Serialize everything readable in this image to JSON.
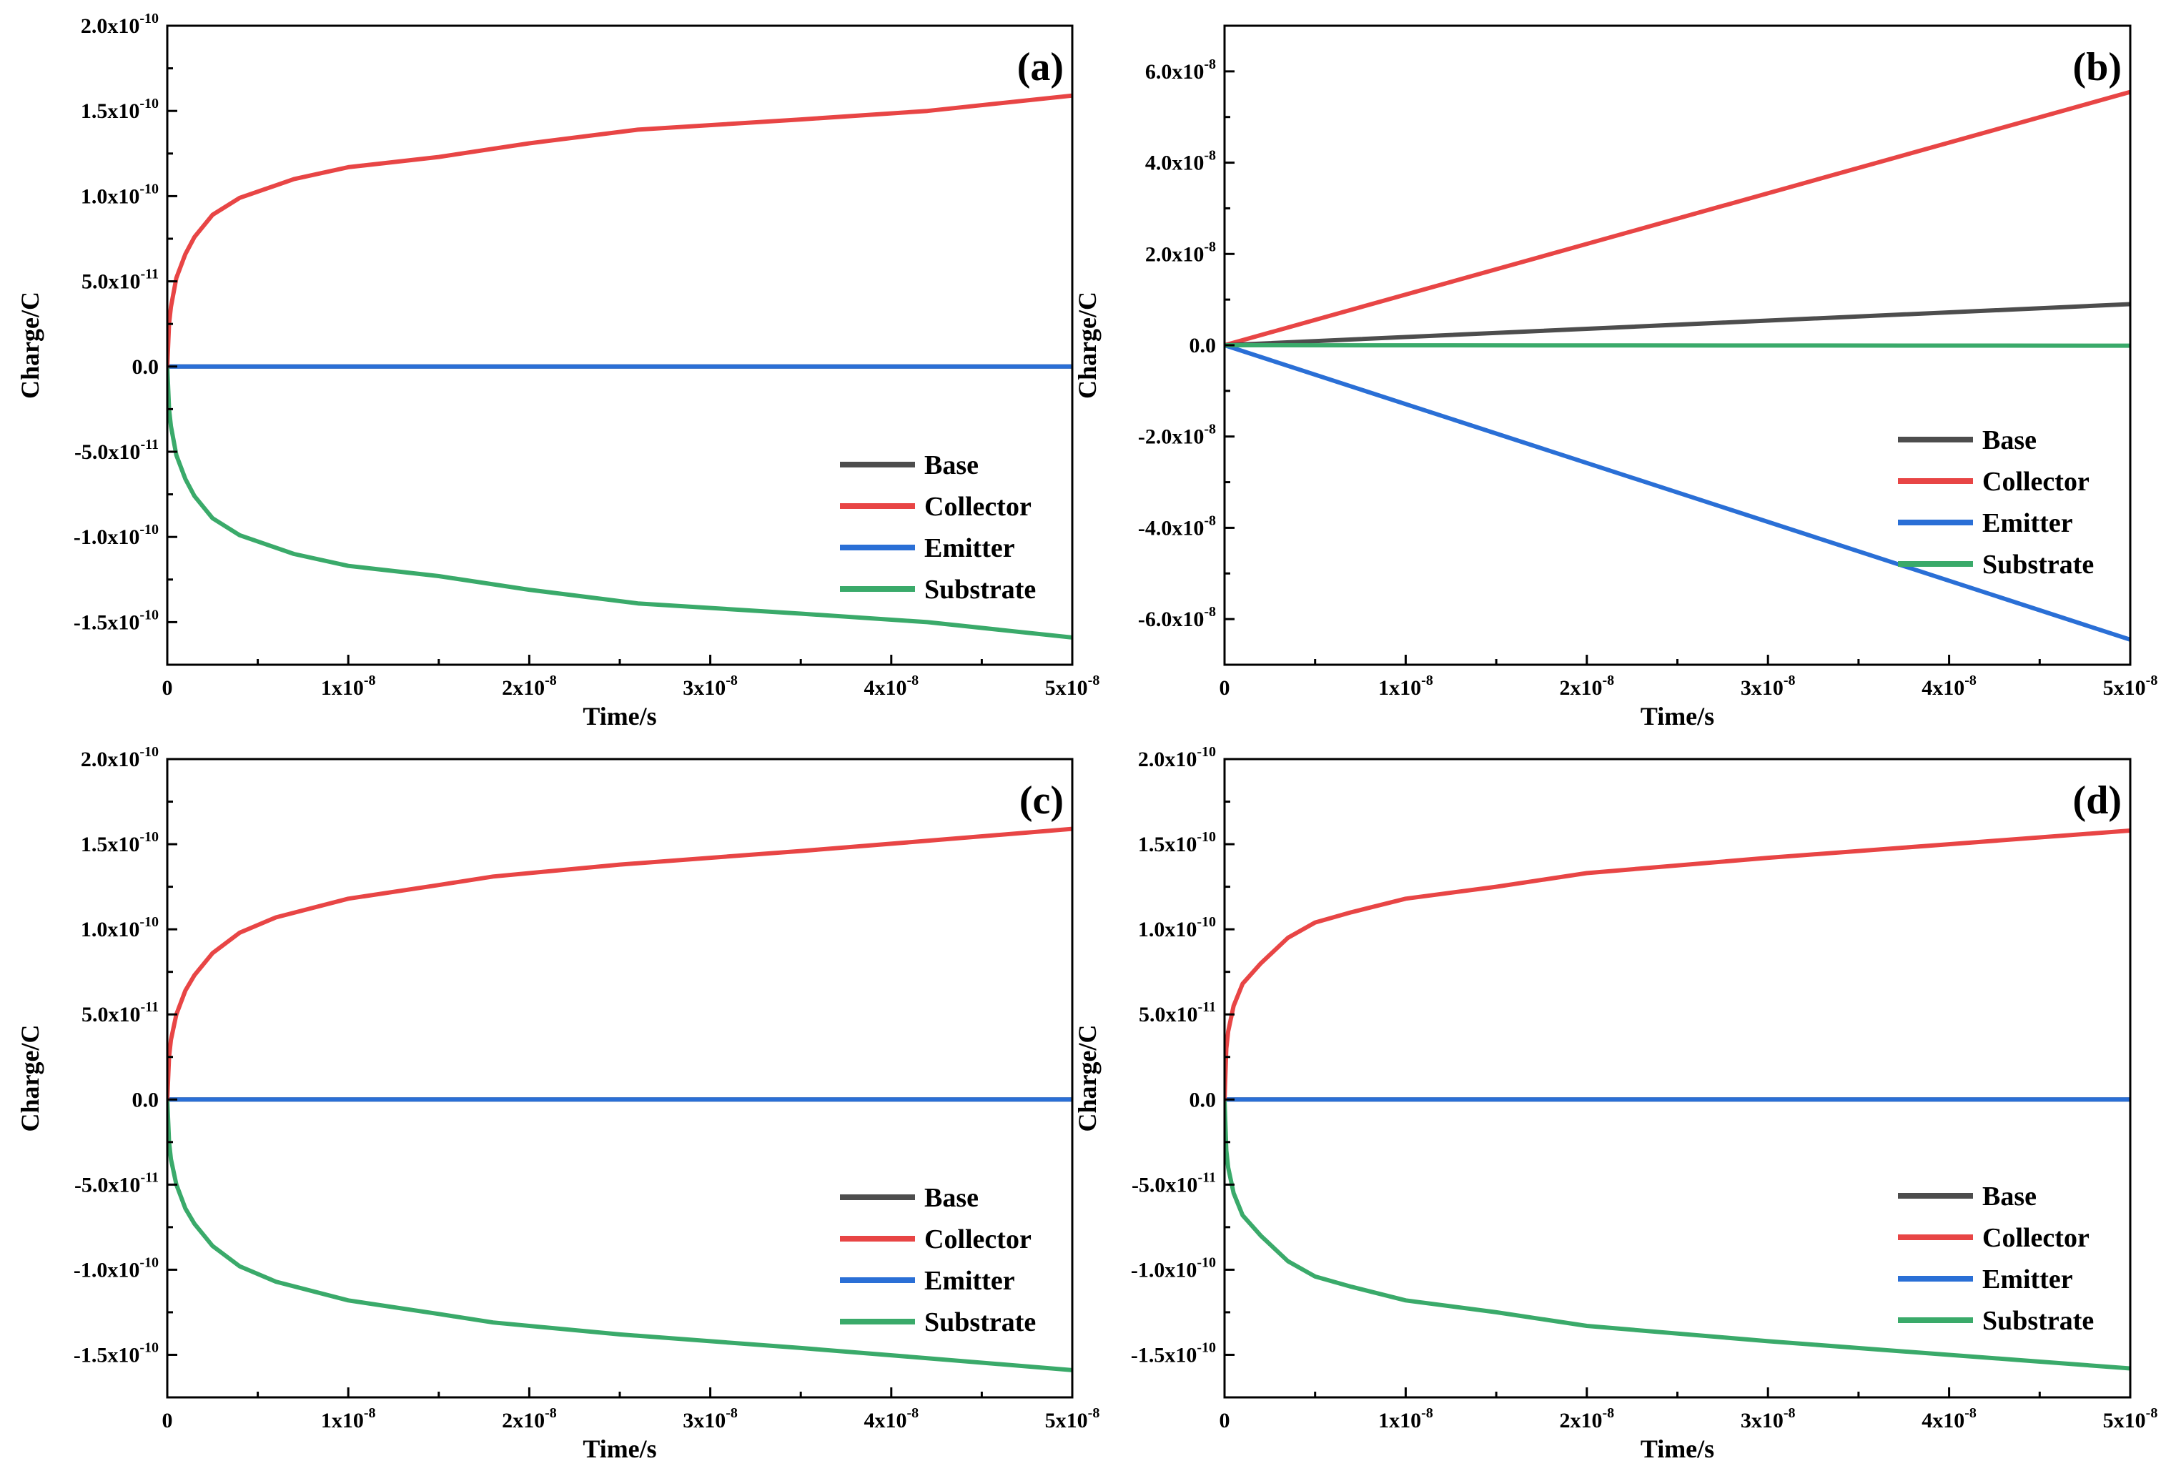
{
  "colors": {
    "Base": "#4d4d4d",
    "Collector": "#e84545",
    "Emitter": "#2a6fd6",
    "Substrate": "#3aaa6a",
    "axis": "#000000"
  },
  "chart_data": [
    {
      "type": "line",
      "panel_label": "(a)",
      "xlabel": "Time/s",
      "ylabel": "Charge/C",
      "xlim": [
        0,
        5e-08
      ],
      "ylim": [
        -1.75e-10,
        2e-10
      ],
      "xticks": [
        {
          "value": 0,
          "mant": "0",
          "exp": ""
        },
        {
          "value": 1e-08,
          "mant": "1x10",
          "exp": "-8"
        },
        {
          "value": 2e-08,
          "mant": "2x10",
          "exp": "-8"
        },
        {
          "value": 3e-08,
          "mant": "3x10",
          "exp": "-8"
        },
        {
          "value": 4e-08,
          "mant": "4x10",
          "exp": "-8"
        },
        {
          "value": 5e-08,
          "mant": "5x10",
          "exp": "-8"
        }
      ],
      "yticks": [
        {
          "value": 2e-10,
          "mant": "2.0x10",
          "exp": "-10"
        },
        {
          "value": 1.5e-10,
          "mant": "1.5x10",
          "exp": "-10"
        },
        {
          "value": 1e-10,
          "mant": "1.0x10",
          "exp": "-10"
        },
        {
          "value": 5e-11,
          "mant": "5.0x10",
          "exp": "-11"
        },
        {
          "value": 0,
          "mant": "0.0",
          "exp": ""
        },
        {
          "value": -5e-11,
          "mant": "-5.0x10",
          "exp": "-11"
        },
        {
          "value": -1e-10,
          "mant": "-1.0x10",
          "exp": "-10"
        },
        {
          "value": -1.5e-10,
          "mant": "-1.5x10",
          "exp": "-10"
        }
      ],
      "legend": [
        "Base",
        "Collector",
        "Emitter",
        "Substrate"
      ],
      "series": [
        {
          "name": "Base",
          "x": [
            0,
            5e-08
          ],
          "values": [
            0,
            0
          ]
        },
        {
          "name": "Emitter",
          "x": [
            0,
            5e-08
          ],
          "values": [
            0,
            0
          ]
        },
        {
          "name": "Substrate",
          "x": [
            0,
            1e-10,
            2e-10,
            5e-10,
            1e-09,
            1.5e-09,
            2.5e-09,
            4e-09,
            7e-09,
            1e-08,
            1.5e-08,
            2e-08,
            2.6e-08,
            3.5e-08,
            4.2e-08,
            5e-08
          ],
          "values": [
            0,
            -2.5e-11,
            -3.5e-11,
            -5.2e-11,
            -6.6e-11,
            -7.6e-11,
            -8.9e-11,
            -9.9e-11,
            -1.1e-10,
            -1.17e-10,
            -1.23e-10,
            -1.31e-10,
            -1.39e-10,
            -1.45e-10,
            -1.5e-10,
            -1.59e-10
          ]
        },
        {
          "name": "Collector",
          "x": [
            0,
            1e-10,
            2e-10,
            5e-10,
            1e-09,
            1.5e-09,
            2.5e-09,
            4e-09,
            7e-09,
            1e-08,
            1.5e-08,
            2e-08,
            2.6e-08,
            3.5e-08,
            4.2e-08,
            5e-08
          ],
          "values": [
            0,
            2.5e-11,
            3.5e-11,
            5.2e-11,
            6.6e-11,
            7.6e-11,
            8.9e-11,
            9.9e-11,
            1.1e-10,
            1.17e-10,
            1.23e-10,
            1.31e-10,
            1.39e-10,
            1.45e-10,
            1.5e-10,
            1.59e-10
          ]
        }
      ]
    },
    {
      "type": "line",
      "panel_label": "(b)",
      "xlabel": "Time/s",
      "ylabel": "Charge/C",
      "xlim": [
        0,
        5e-08
      ],
      "ylim": [
        -7e-08,
        7e-08
      ],
      "xticks": [
        {
          "value": 0,
          "mant": "0",
          "exp": ""
        },
        {
          "value": 1e-08,
          "mant": "1x10",
          "exp": "-8"
        },
        {
          "value": 2e-08,
          "mant": "2x10",
          "exp": "-8"
        },
        {
          "value": 3e-08,
          "mant": "3x10",
          "exp": "-8"
        },
        {
          "value": 4e-08,
          "mant": "4x10",
          "exp": "-8"
        },
        {
          "value": 5e-08,
          "mant": "5x10",
          "exp": "-8"
        }
      ],
      "yticks": [
        {
          "value": 6e-08,
          "mant": "6.0x10",
          "exp": "-8"
        },
        {
          "value": 4e-08,
          "mant": "4.0x10",
          "exp": "-8"
        },
        {
          "value": 2e-08,
          "mant": "2.0x10",
          "exp": "-8"
        },
        {
          "value": 0,
          "mant": "0.0",
          "exp": ""
        },
        {
          "value": -2e-08,
          "mant": "-2.0x10",
          "exp": "-8"
        },
        {
          "value": -4e-08,
          "mant": "-4.0x10",
          "exp": "-8"
        },
        {
          "value": -6e-08,
          "mant": "-6.0x10",
          "exp": "-8"
        }
      ],
      "legend": [
        "Base",
        "Collector",
        "Emitter",
        "Substrate"
      ],
      "series": [
        {
          "name": "Collector",
          "x": [
            0,
            5e-08
          ],
          "values": [
            0,
            5.55e-08
          ]
        },
        {
          "name": "Emitter",
          "x": [
            0,
            5e-08
          ],
          "values": [
            0,
            -6.45e-08
          ]
        },
        {
          "name": "Base",
          "x": [
            0,
            5e-08
          ],
          "values": [
            0,
            9e-09
          ]
        },
        {
          "name": "Substrate",
          "x": [
            0,
            5e-08
          ],
          "values": [
            0,
            -1e-10
          ]
        }
      ]
    },
    {
      "type": "line",
      "panel_label": "(c)",
      "xlabel": "Time/s",
      "ylabel": "Charge/C",
      "xlim": [
        0,
        5e-08
      ],
      "ylim": [
        -1.75e-10,
        2e-10
      ],
      "xticks": [
        {
          "value": 0,
          "mant": "0",
          "exp": ""
        },
        {
          "value": 1e-08,
          "mant": "1x10",
          "exp": "-8"
        },
        {
          "value": 2e-08,
          "mant": "2x10",
          "exp": "-8"
        },
        {
          "value": 3e-08,
          "mant": "3x10",
          "exp": "-8"
        },
        {
          "value": 4e-08,
          "mant": "4x10",
          "exp": "-8"
        },
        {
          "value": 5e-08,
          "mant": "5x10",
          "exp": "-8"
        }
      ],
      "yticks": [
        {
          "value": 2e-10,
          "mant": "2.0x10",
          "exp": "-10"
        },
        {
          "value": 1.5e-10,
          "mant": "1.5x10",
          "exp": "-10"
        },
        {
          "value": 1e-10,
          "mant": "1.0x10",
          "exp": "-10"
        },
        {
          "value": 5e-11,
          "mant": "5.0x10",
          "exp": "-11"
        },
        {
          "value": 0,
          "mant": "0.0",
          "exp": ""
        },
        {
          "value": -5e-11,
          "mant": "-5.0x10",
          "exp": "-11"
        },
        {
          "value": -1e-10,
          "mant": "-1.0x10",
          "exp": "-10"
        },
        {
          "value": -1.5e-10,
          "mant": "-1.5x10",
          "exp": "-10"
        }
      ],
      "legend": [
        "Base",
        "Collector",
        "Emitter",
        "Substrate"
      ],
      "series": [
        {
          "name": "Base",
          "x": [
            0,
            5e-08
          ],
          "values": [
            0,
            0
          ]
        },
        {
          "name": "Emitter",
          "x": [
            0,
            5e-08
          ],
          "values": [
            0,
            0
          ]
        },
        {
          "name": "Substrate",
          "x": [
            0,
            1e-10,
            2e-10,
            5e-10,
            1e-09,
            1.5e-09,
            2.5e-09,
            4e-09,
            6e-09,
            1e-08,
            1.5e-08,
            1.8e-08,
            2.5e-08,
            3.5e-08,
            4.2e-08,
            5e-08
          ],
          "values": [
            0,
            -2.5e-11,
            -3.5e-11,
            -5e-11,
            -6.4e-11,
            -7.3e-11,
            -8.6e-11,
            -9.8e-11,
            -1.07e-10,
            -1.18e-10,
            -1.26e-10,
            -1.31e-10,
            -1.38e-10,
            -1.46e-10,
            -1.52e-10,
            -1.59e-10
          ]
        },
        {
          "name": "Collector",
          "x": [
            0,
            1e-10,
            2e-10,
            5e-10,
            1e-09,
            1.5e-09,
            2.5e-09,
            4e-09,
            6e-09,
            1e-08,
            1.5e-08,
            1.8e-08,
            2.5e-08,
            3.5e-08,
            4.2e-08,
            5e-08
          ],
          "values": [
            0,
            2.5e-11,
            3.5e-11,
            5e-11,
            6.4e-11,
            7.3e-11,
            8.6e-11,
            9.8e-11,
            1.07e-10,
            1.18e-10,
            1.26e-10,
            1.31e-10,
            1.38e-10,
            1.46e-10,
            1.52e-10,
            1.59e-10
          ]
        }
      ]
    },
    {
      "type": "line",
      "panel_label": "(d)",
      "xlabel": "Time/s",
      "ylabel": "Charge/C",
      "xlim": [
        0,
        5e-08
      ],
      "ylim": [
        -1.75e-10,
        2e-10
      ],
      "xticks": [
        {
          "value": 0,
          "mant": "0",
          "exp": ""
        },
        {
          "value": 1e-08,
          "mant": "1x10",
          "exp": "-8"
        },
        {
          "value": 2e-08,
          "mant": "2x10",
          "exp": "-8"
        },
        {
          "value": 3e-08,
          "mant": "3x10",
          "exp": "-8"
        },
        {
          "value": 4e-08,
          "mant": "4x10",
          "exp": "-8"
        },
        {
          "value": 5e-08,
          "mant": "5x10",
          "exp": "-8"
        }
      ],
      "yticks": [
        {
          "value": 2e-10,
          "mant": "2.0x10",
          "exp": "-10"
        },
        {
          "value": 1.5e-10,
          "mant": "1.5x10",
          "exp": "-10"
        },
        {
          "value": 1e-10,
          "mant": "1.0x10",
          "exp": "-10"
        },
        {
          "value": 5e-11,
          "mant": "5.0x10",
          "exp": "-11"
        },
        {
          "value": 0,
          "mant": "0.0",
          "exp": ""
        },
        {
          "value": -5e-11,
          "mant": "-5.0x10",
          "exp": "-11"
        },
        {
          "value": -1e-10,
          "mant": "-1.0x10",
          "exp": "-10"
        },
        {
          "value": -1.5e-10,
          "mant": "-1.5x10",
          "exp": "-10"
        }
      ],
      "legend": [
        "Base",
        "Collector",
        "Emitter",
        "Substrate"
      ],
      "series": [
        {
          "name": "Base",
          "x": [
            0,
            5e-08
          ],
          "values": [
            0,
            0
          ]
        },
        {
          "name": "Emitter",
          "x": [
            0,
            5e-08
          ],
          "values": [
            0,
            0
          ]
        },
        {
          "name": "Substrate",
          "x": [
            0,
            1e-10,
            2e-10,
            5e-10,
            1e-09,
            2e-09,
            3.5e-09,
            5e-09,
            7e-09,
            1e-08,
            1.5e-08,
            2e-08,
            3e-08,
            4e-08,
            5e-08
          ],
          "values": [
            0,
            -3e-11,
            -4e-11,
            -5.5e-11,
            -6.8e-11,
            -8e-11,
            -9.5e-11,
            -1.04e-10,
            -1.1e-10,
            -1.18e-10,
            -1.25e-10,
            -1.33e-10,
            -1.42e-10,
            -1.5e-10,
            -1.58e-10
          ]
        },
        {
          "name": "Collector",
          "x": [
            0,
            1e-10,
            2e-10,
            5e-10,
            1e-09,
            2e-09,
            3.5e-09,
            5e-09,
            7e-09,
            1e-08,
            1.5e-08,
            2e-08,
            3e-08,
            4e-08,
            5e-08
          ],
          "values": [
            0,
            3e-11,
            4e-11,
            5.5e-11,
            6.8e-11,
            8e-11,
            9.5e-11,
            1.04e-10,
            1.1e-10,
            1.18e-10,
            1.25e-10,
            1.33e-10,
            1.42e-10,
            1.5e-10,
            1.58e-10
          ]
        }
      ]
    }
  ]
}
